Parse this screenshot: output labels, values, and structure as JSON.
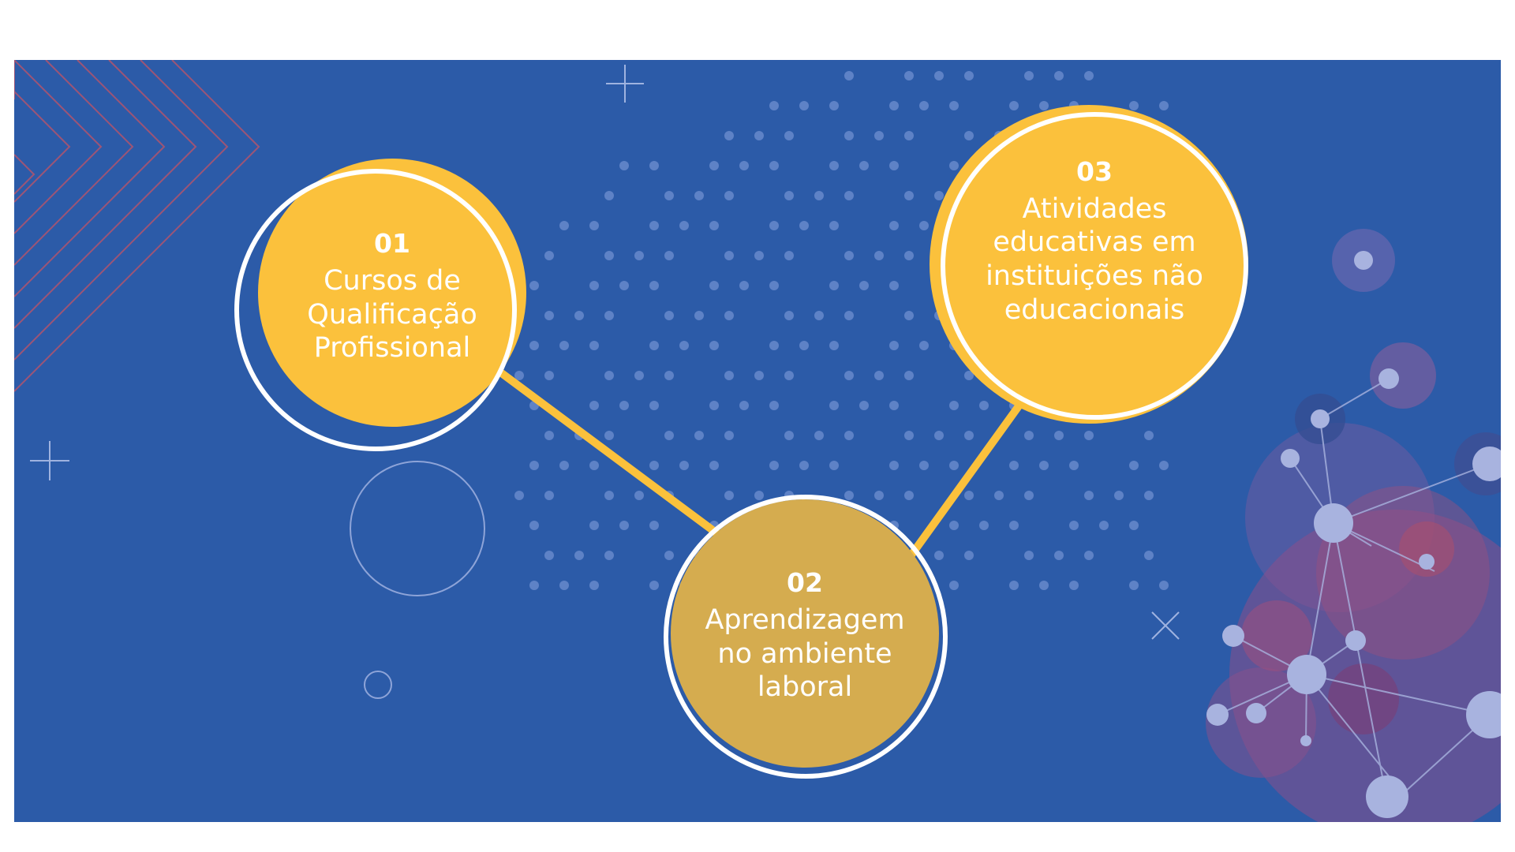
{
  "colors": {
    "background": "#2c5ba8",
    "node_yellow": "#fbc13c",
    "node_mustard": "#d5ac4f",
    "connector": "#fbc13c",
    "ring": "#ffffff",
    "text": "#ffffff",
    "network_purple": "#8b4f8a",
    "network_node": "#a8b3df",
    "chevron_line": "#b0546e"
  },
  "steps": [
    {
      "number": "01",
      "lines": [
        "Cursos de",
        "Qualificação",
        "Profissional"
      ]
    },
    {
      "number": "02",
      "lines": [
        "Aprendizagem",
        "no ambiente",
        "laboral"
      ]
    },
    {
      "number": "03",
      "lines": [
        "Atividades",
        "educativas em",
        "instituições não",
        "educacionais"
      ]
    }
  ],
  "decorations": {
    "plus_icon": "plus-icon",
    "cross_icon": "x-icon",
    "chevron_pattern": "chevron-lines",
    "network_graphic": "molecule-network",
    "dot_field": "dot-grid"
  }
}
